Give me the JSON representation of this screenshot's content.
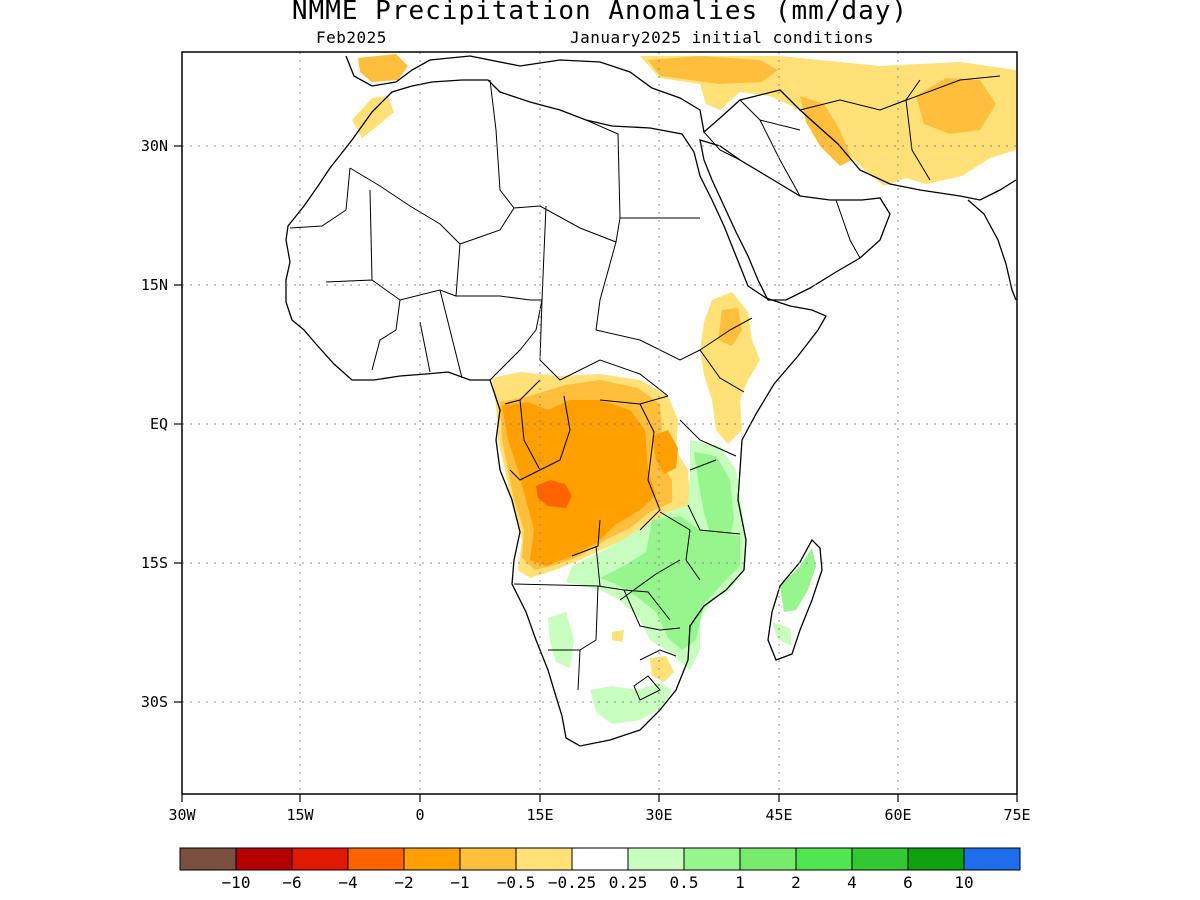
{
  "title": "NMME Precipitation Anomalies (mm/day)",
  "target_month": "Feb2025",
  "initial_conditions": "January2025 initial conditions",
  "x_ticks": [
    "30W",
    "15W",
    "0",
    "15E",
    "30E",
    "45E",
    "60E",
    "75E"
  ],
  "y_ticks": [
    "30N",
    "15N",
    "EQ",
    "15S",
    "30S"
  ],
  "colorbar": {
    "colors": [
      "#7a5040",
      "#b40000",
      "#e01a00",
      "#ff6400",
      "#ffa000",
      "#ffbe3c",
      "#ffe178",
      "#ffffff",
      "#c8ffbe",
      "#96f58c",
      "#78eb6e",
      "#50e650",
      "#32c832",
      "#0fa00f",
      "#1e6eeb"
    ],
    "labels": [
      "−10",
      "−6",
      "−4",
      "−2",
      "−1",
      "−0.5",
      "−0.25",
      "0.25",
      "0.5",
      "1",
      "2",
      "4",
      "6",
      "10"
    ]
  }
}
